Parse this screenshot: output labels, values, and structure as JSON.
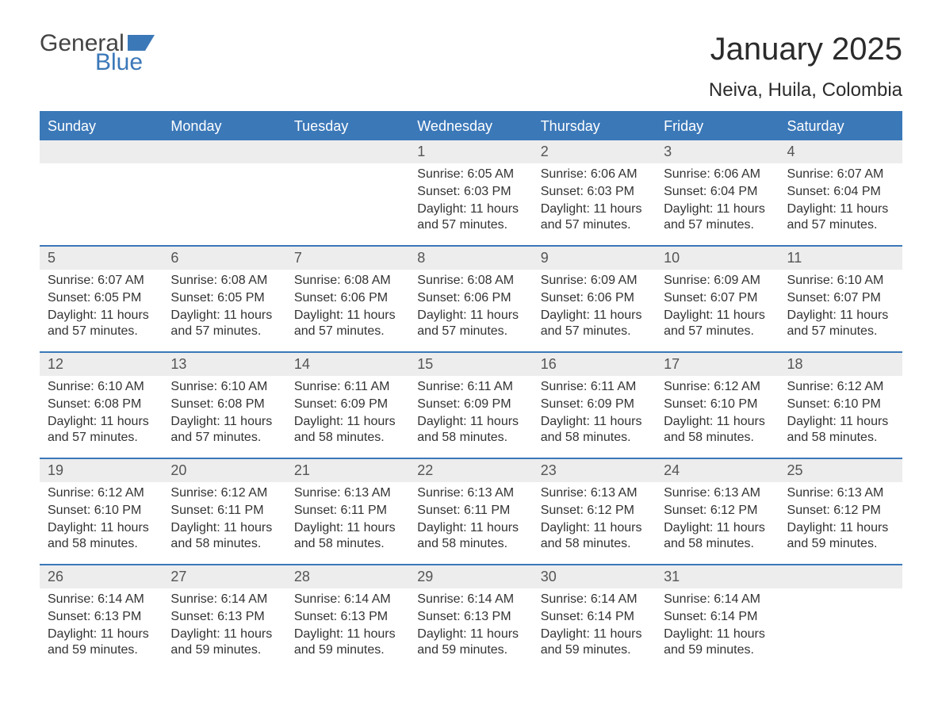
{
  "logo": {
    "general": "General",
    "blue": "Blue",
    "flag_color": "#3b78b8"
  },
  "title": "January 2025",
  "location": "Neiva, Huila, Colombia",
  "colors": {
    "header_bg": "#3b78b8",
    "header_text": "#ffffff",
    "daynum_bg": "#ededed",
    "border": "#3b78b8",
    "text": "#333333"
  },
  "day_labels": [
    "Sunday",
    "Monday",
    "Tuesday",
    "Wednesday",
    "Thursday",
    "Friday",
    "Saturday"
  ],
  "labels": {
    "sunrise": "Sunrise:",
    "sunset": "Sunset:",
    "daylight": "Daylight:"
  },
  "weeks": [
    [
      {
        "n": "",
        "empty": true
      },
      {
        "n": "",
        "empty": true
      },
      {
        "n": "",
        "empty": true
      },
      {
        "n": "1",
        "sunrise": "6:05 AM",
        "sunset": "6:03 PM",
        "daylight": "11 hours and 57 minutes."
      },
      {
        "n": "2",
        "sunrise": "6:06 AM",
        "sunset": "6:03 PM",
        "daylight": "11 hours and 57 minutes."
      },
      {
        "n": "3",
        "sunrise": "6:06 AM",
        "sunset": "6:04 PM",
        "daylight": "11 hours and 57 minutes."
      },
      {
        "n": "4",
        "sunrise": "6:07 AM",
        "sunset": "6:04 PM",
        "daylight": "11 hours and 57 minutes."
      }
    ],
    [
      {
        "n": "5",
        "sunrise": "6:07 AM",
        "sunset": "6:05 PM",
        "daylight": "11 hours and 57 minutes."
      },
      {
        "n": "6",
        "sunrise": "6:08 AM",
        "sunset": "6:05 PM",
        "daylight": "11 hours and 57 minutes."
      },
      {
        "n": "7",
        "sunrise": "6:08 AM",
        "sunset": "6:06 PM",
        "daylight": "11 hours and 57 minutes."
      },
      {
        "n": "8",
        "sunrise": "6:08 AM",
        "sunset": "6:06 PM",
        "daylight": "11 hours and 57 minutes."
      },
      {
        "n": "9",
        "sunrise": "6:09 AM",
        "sunset": "6:06 PM",
        "daylight": "11 hours and 57 minutes."
      },
      {
        "n": "10",
        "sunrise": "6:09 AM",
        "sunset": "6:07 PM",
        "daylight": "11 hours and 57 minutes."
      },
      {
        "n": "11",
        "sunrise": "6:10 AM",
        "sunset": "6:07 PM",
        "daylight": "11 hours and 57 minutes."
      }
    ],
    [
      {
        "n": "12",
        "sunrise": "6:10 AM",
        "sunset": "6:08 PM",
        "daylight": "11 hours and 57 minutes."
      },
      {
        "n": "13",
        "sunrise": "6:10 AM",
        "sunset": "6:08 PM",
        "daylight": "11 hours and 57 minutes."
      },
      {
        "n": "14",
        "sunrise": "6:11 AM",
        "sunset": "6:09 PM",
        "daylight": "11 hours and 58 minutes."
      },
      {
        "n": "15",
        "sunrise": "6:11 AM",
        "sunset": "6:09 PM",
        "daylight": "11 hours and 58 minutes."
      },
      {
        "n": "16",
        "sunrise": "6:11 AM",
        "sunset": "6:09 PM",
        "daylight": "11 hours and 58 minutes."
      },
      {
        "n": "17",
        "sunrise": "6:12 AM",
        "sunset": "6:10 PM",
        "daylight": "11 hours and 58 minutes."
      },
      {
        "n": "18",
        "sunrise": "6:12 AM",
        "sunset": "6:10 PM",
        "daylight": "11 hours and 58 minutes."
      }
    ],
    [
      {
        "n": "19",
        "sunrise": "6:12 AM",
        "sunset": "6:10 PM",
        "daylight": "11 hours and 58 minutes."
      },
      {
        "n": "20",
        "sunrise": "6:12 AM",
        "sunset": "6:11 PM",
        "daylight": "11 hours and 58 minutes."
      },
      {
        "n": "21",
        "sunrise": "6:13 AM",
        "sunset": "6:11 PM",
        "daylight": "11 hours and 58 minutes."
      },
      {
        "n": "22",
        "sunrise": "6:13 AM",
        "sunset": "6:11 PM",
        "daylight": "11 hours and 58 minutes."
      },
      {
        "n": "23",
        "sunrise": "6:13 AM",
        "sunset": "6:12 PM",
        "daylight": "11 hours and 58 minutes."
      },
      {
        "n": "24",
        "sunrise": "6:13 AM",
        "sunset": "6:12 PM",
        "daylight": "11 hours and 58 minutes."
      },
      {
        "n": "25",
        "sunrise": "6:13 AM",
        "sunset": "6:12 PM",
        "daylight": "11 hours and 59 minutes."
      }
    ],
    [
      {
        "n": "26",
        "sunrise": "6:14 AM",
        "sunset": "6:13 PM",
        "daylight": "11 hours and 59 minutes."
      },
      {
        "n": "27",
        "sunrise": "6:14 AM",
        "sunset": "6:13 PM",
        "daylight": "11 hours and 59 minutes."
      },
      {
        "n": "28",
        "sunrise": "6:14 AM",
        "sunset": "6:13 PM",
        "daylight": "11 hours and 59 minutes."
      },
      {
        "n": "29",
        "sunrise": "6:14 AM",
        "sunset": "6:13 PM",
        "daylight": "11 hours and 59 minutes."
      },
      {
        "n": "30",
        "sunrise": "6:14 AM",
        "sunset": "6:14 PM",
        "daylight": "11 hours and 59 minutes."
      },
      {
        "n": "31",
        "sunrise": "6:14 AM",
        "sunset": "6:14 PM",
        "daylight": "11 hours and 59 minutes."
      },
      {
        "n": "",
        "empty": true
      }
    ]
  ]
}
